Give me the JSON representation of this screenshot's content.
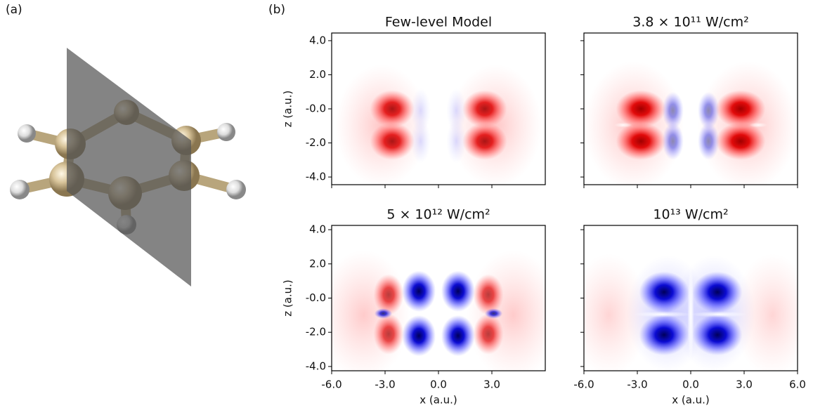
{
  "panel_labels": [
    "(a)",
    "(b)"
  ],
  "chart_data": [
    {
      "type": "heatmap",
      "title": "Few-level Model",
      "ylabel": "z (a.u.)",
      "xlim": [
        -6,
        6
      ],
      "ylim": [
        -4.45,
        4.45
      ],
      "yticks": [
        {
          "value": 4,
          "label": "4.0"
        },
        {
          "value": 2,
          "label": "2.0"
        },
        {
          "value": 0,
          "label": "-0.0"
        },
        {
          "value": -2,
          "label": "-2.0"
        },
        {
          "value": -4,
          "label": "-4.0"
        }
      ]
    },
    {
      "type": "heatmap",
      "title": "3.8 × 10¹¹ W/cm²",
      "xlim": [
        -6,
        6
      ],
      "ylim": [
        -4.45,
        4.45
      ]
    },
    {
      "type": "heatmap",
      "title": "5 × 10¹² W/cm²",
      "xlabel": "x (a.u.)",
      "ylabel": "z (a.u.)",
      "xlim": [
        -6,
        6
      ],
      "ylim": [
        -4.25,
        4.25
      ],
      "xticks": [
        {
          "value": -6,
          "label": "-6.0"
        },
        {
          "value": -3,
          "label": "-3.0"
        },
        {
          "value": 0,
          "label": "0.0"
        },
        {
          "value": 3,
          "label": "3.0"
        }
      ],
      "yticks": [
        {
          "value": 4,
          "label": "4.0"
        },
        {
          "value": 2,
          "label": "2.0"
        },
        {
          "value": 0,
          "label": "-0.0"
        },
        {
          "value": -2,
          "label": "-2.0"
        },
        {
          "value": -4,
          "label": "-4.0"
        }
      ]
    },
    {
      "type": "heatmap",
      "title": "10¹³ W/cm²",
      "xlabel": "x (a.u.)",
      "xlim": [
        -6,
        6
      ],
      "ylim": [
        -4.25,
        4.25
      ],
      "xticks": [
        {
          "value": -6,
          "label": "-6.0"
        },
        {
          "value": -3,
          "label": "-3.0"
        },
        {
          "value": 0,
          "label": "0.0"
        },
        {
          "value": 3,
          "label": "3.0"
        },
        {
          "value": 6,
          "label": "6.0"
        }
      ]
    }
  ]
}
